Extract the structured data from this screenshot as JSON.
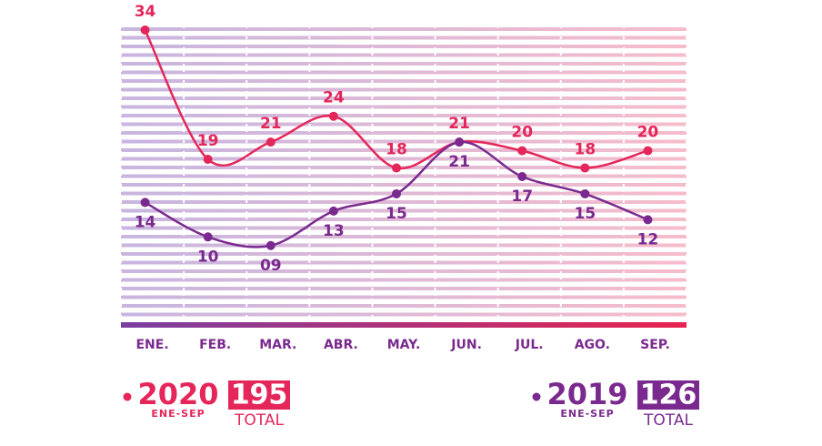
{
  "chart_data": {
    "type": "line",
    "categories": [
      "ENE.",
      "FEB.",
      "MAR.",
      "ABR.",
      "MAY.",
      "JUN.",
      "JUL.",
      "AGO.",
      "SEP."
    ],
    "ylim": [
      0,
      34
    ],
    "series": [
      {
        "name": "2020",
        "color": "#e5265a",
        "values": [
          34,
          19,
          21,
          24,
          18,
          21,
          20,
          18,
          20
        ],
        "period": "ENE-SEP",
        "total": 195,
        "total_label": "TOTAL"
      },
      {
        "name": "2019",
        "color": "#7a2a8e",
        "values": [
          14,
          10,
          9,
          13,
          15,
          21,
          17,
          15,
          12
        ],
        "value_labels": [
          "14",
          "10",
          "09",
          "13",
          "15",
          "21",
          "17",
          "15",
          "12"
        ],
        "period": "ENE-SEP",
        "total": 126,
        "total_label": "TOTAL"
      }
    ]
  }
}
